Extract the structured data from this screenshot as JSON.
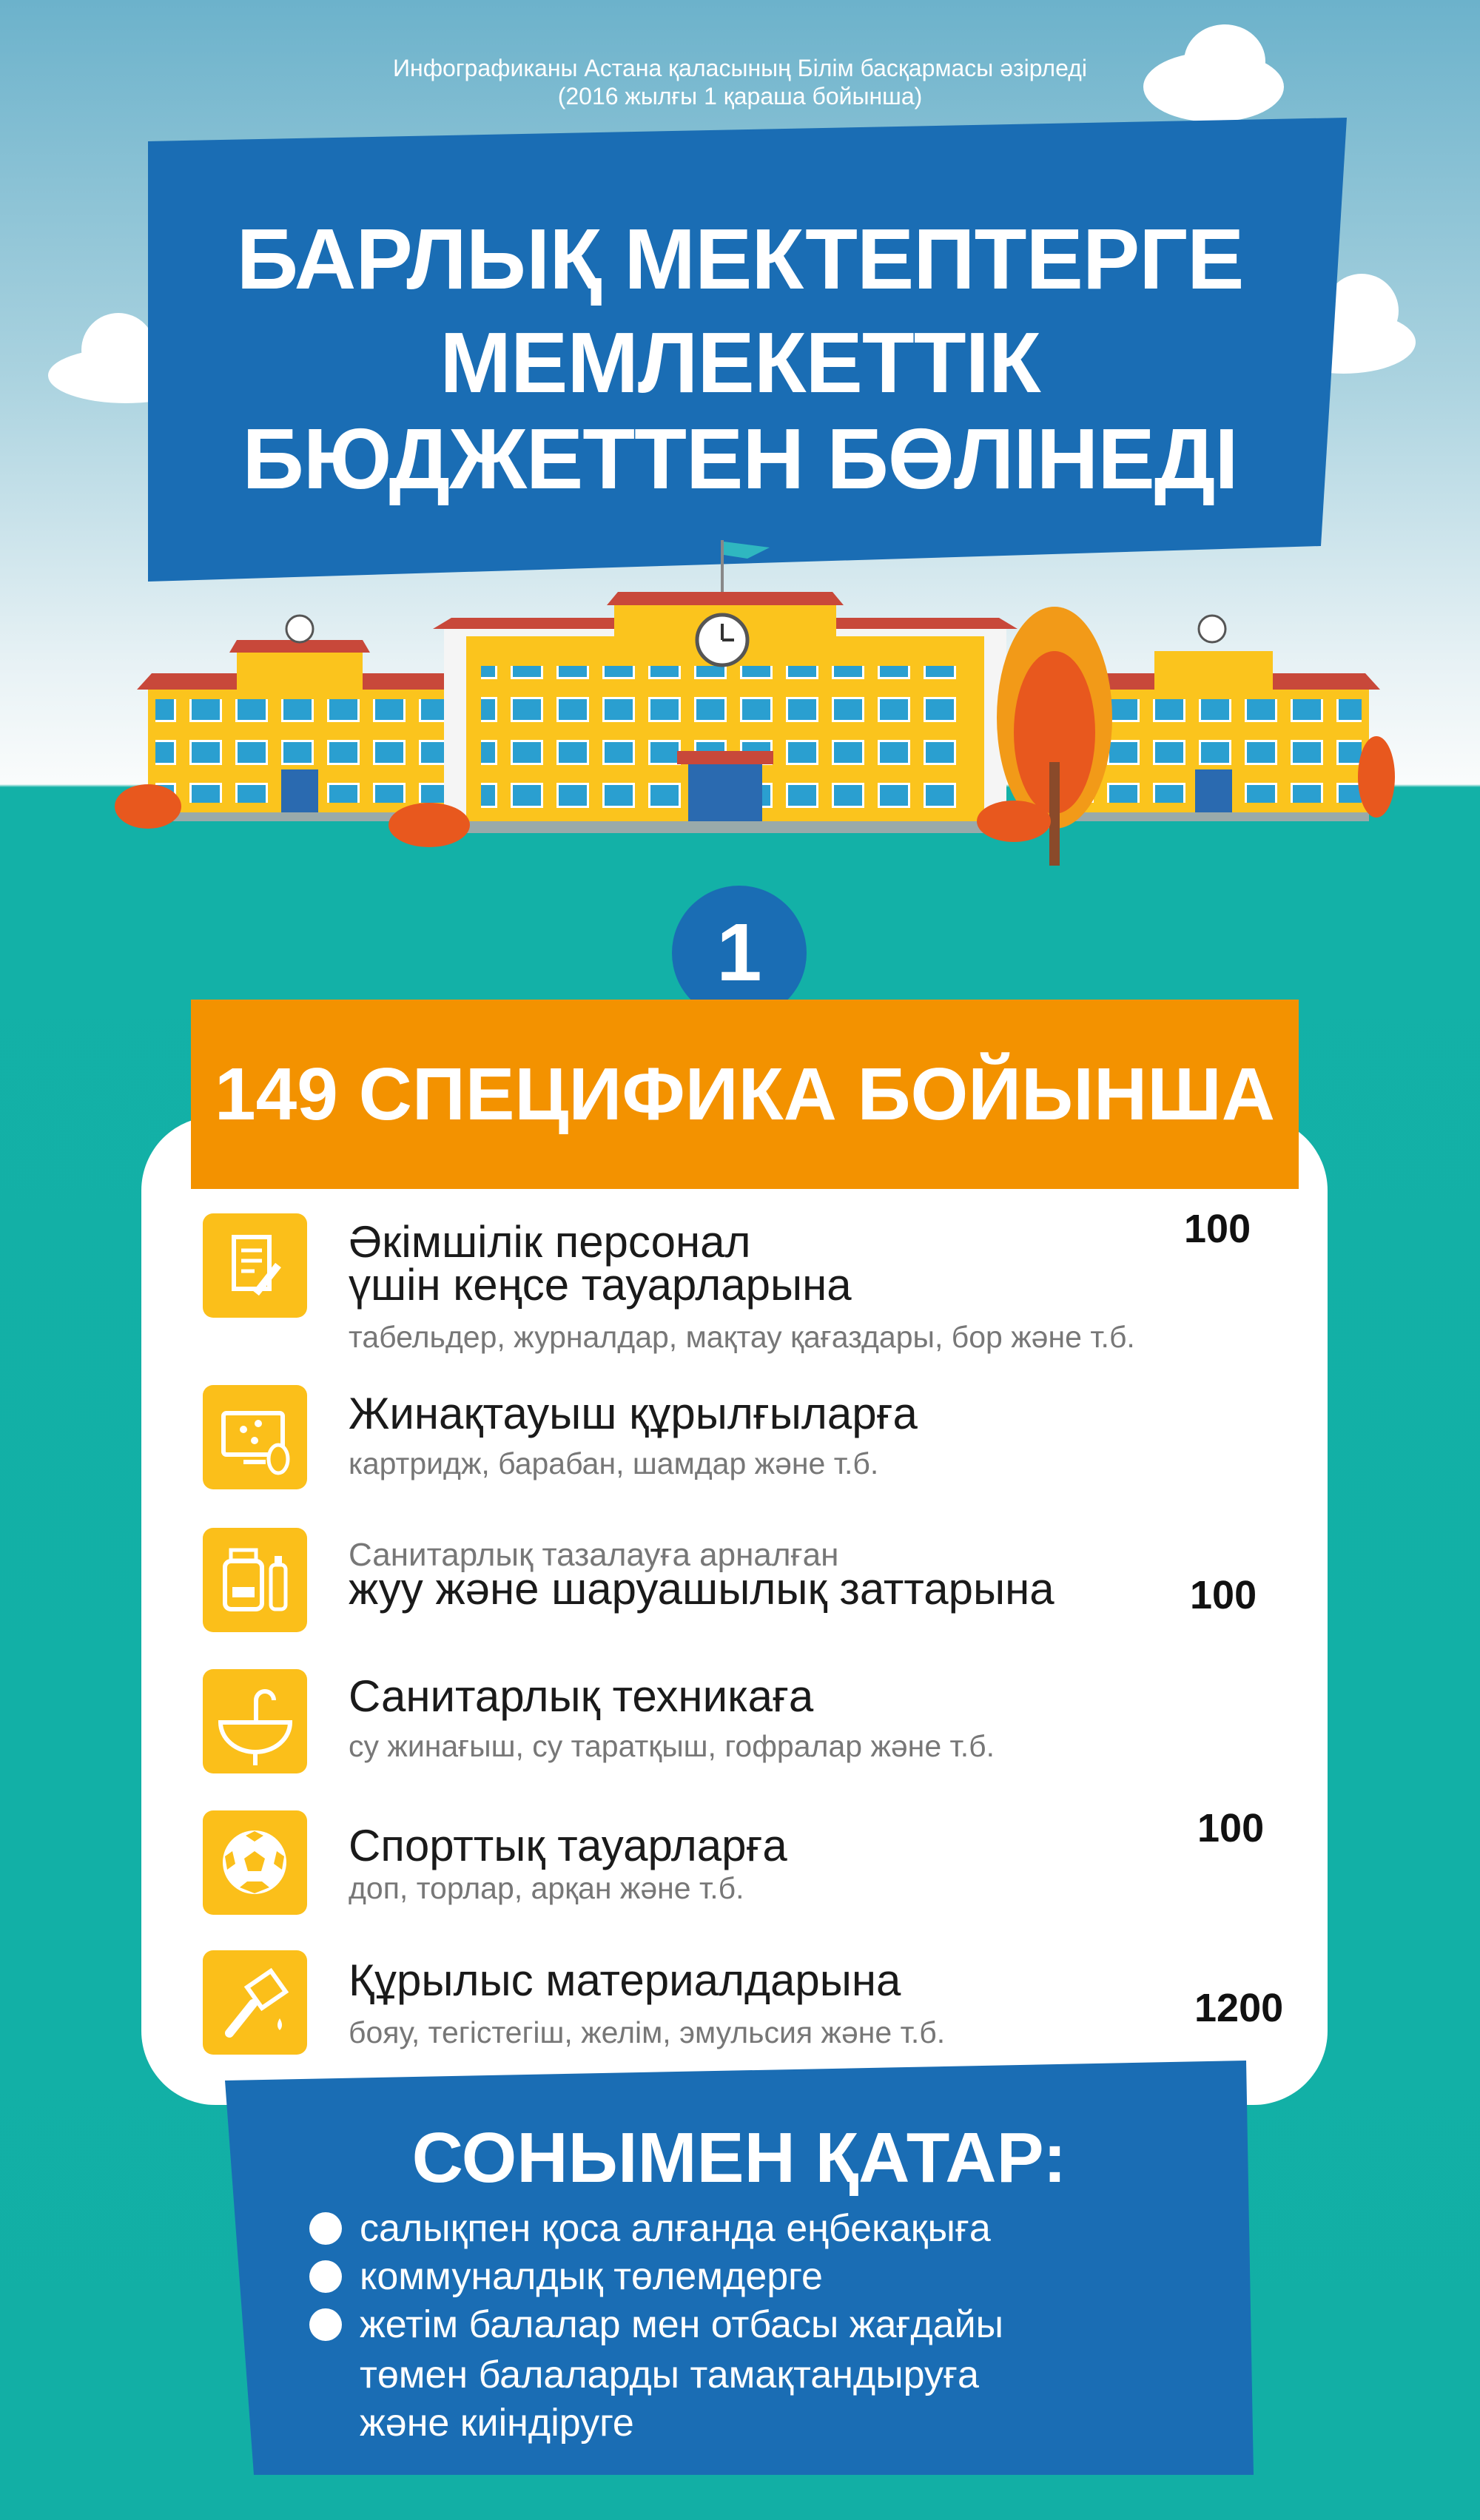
{
  "header": {
    "credit_line1": "Инфографиканы Астана қаласының Білім басқармасы әзірледі",
    "credit_line2": "(2016 жылғы 1 қараша бойынша)",
    "title_lines": [
      "БАРЛЫҚ МЕКТЕПТЕРГЕ",
      "МЕМЛЕКЕТТІК",
      "БЮДЖЕТТЕН БӨЛІНЕДІ"
    ]
  },
  "section": {
    "number": "1",
    "heading": "149 СПЕЦИФИКА БОЙЫНША",
    "items": [
      {
        "icon": "document-pencil-icon",
        "title_lines": [
          "Әкімшілік персонал",
          "үшін кеңсе тауарларына"
        ],
        "sub": "табельдер, журналдар, мақтау қағаздары, бор және т.б.",
        "value": "100"
      },
      {
        "icon": "computer-mouse-icon",
        "title_lines": [
          "Жинақтауыш құрылғыларға"
        ],
        "sub": "картридж, барабан, шамдар және т.б.",
        "value": ""
      },
      {
        "icon": "cleaning-bottles-icon",
        "pre": "Санитарлық тазалауға арналған",
        "title_lines": [
          "жуу және шаруашылық заттарына"
        ],
        "value": "100"
      },
      {
        "icon": "sink-faucet-icon",
        "title_lines": [
          "Санитарлық техникаға"
        ],
        "sub": "су жинағыш, су таратқыш, гофралар және т.б.",
        "value": ""
      },
      {
        "icon": "soccer-ball-icon",
        "title_lines": [
          "Спорттық тауарларға"
        ],
        "sub": "доп, торлар, арқан және т.б.",
        "value": "100"
      },
      {
        "icon": "paint-brush-icon",
        "title_lines": [
          "Құрылыс материалдарына"
        ],
        "sub": "бояу, тегістегіш, желім, эмульсия және т.б.",
        "value": "1200"
      }
    ]
  },
  "also": {
    "heading": "СОНЫМЕН ҚАТАР:",
    "bullets": [
      {
        "lines": [
          "салықпен қоса алғанда еңбекақыға"
        ]
      },
      {
        "lines": [
          "коммуналдық төлемдерге"
        ]
      },
      {
        "lines": [
          "жетім балалар мен отбасы жағдайы",
          "төмен балаларды тамақтандыруға",
          "және киіндіруге"
        ]
      }
    ]
  },
  "colors": {
    "blue": "#1a6db4",
    "orange": "#f39200",
    "yellow": "#fbbf1a",
    "teal": "#13b1a7"
  }
}
